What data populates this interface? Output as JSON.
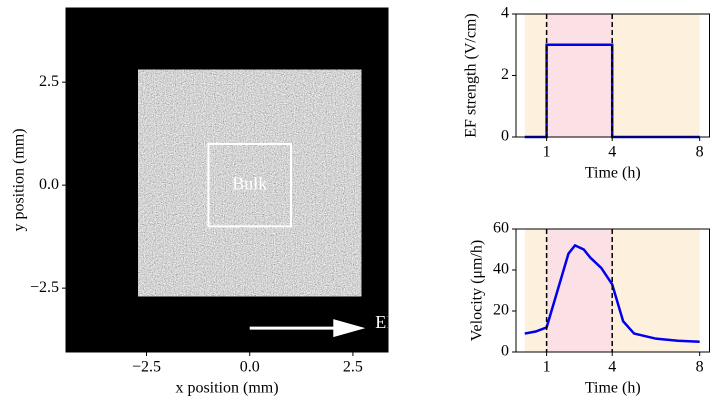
{
  "chart_data": [
    {
      "type": "image",
      "xlabel": "x position (mm)",
      "ylabel": "y position (mm)",
      "xlim": [
        -4.45,
        3.35
      ],
      "ylim": [
        -4.05,
        4.3
      ],
      "xticks": [
        {
          "value": -2.5,
          "label": "−2.5"
        },
        {
          "value": 0,
          "label": "0.0"
        },
        2.5
      ],
      "yticks": [
        {
          "value": -2.5,
          "label": "−2.5"
        },
        {
          "value": 0,
          "label": "0.0"
        },
        2.5
      ],
      "background": "#000000",
      "sample": {
        "x": [
          -2.7,
          2.7
        ],
        "y": [
          -2.7,
          2.8
        ]
      },
      "box": {
        "label": "Bulk",
        "x": [
          -1,
          1
        ],
        "y": [
          -1,
          1
        ],
        "color": "#ffffff"
      },
      "arrow": {
        "label": "EF",
        "x": [
          0,
          2.8
        ],
        "y": -3.47,
        "color": "#ffffff"
      }
    },
    {
      "type": "line",
      "xlabel": "Time (h)",
      "ylabel": "EF strength (V/cm)",
      "xlim": [
        -0.4,
        8.45
      ],
      "ylim": [
        0,
        4
      ],
      "xticks": [
        1,
        4,
        8
      ],
      "yticks": [
        0,
        2,
        4
      ],
      "spans": [
        {
          "x": [
            0,
            8
          ],
          "color": "#fdf0dc"
        },
        {
          "x": [
            1,
            4
          ],
          "color": "#fbe0e6"
        }
      ],
      "vlines": [
        1,
        4
      ],
      "series": [
        {
          "color": "#0000ee",
          "x": [
            0,
            1,
            1,
            4,
            4,
            8
          ],
          "values": [
            0,
            0,
            3,
            3,
            0,
            0
          ]
        }
      ]
    },
    {
      "type": "line",
      "xlabel": "Time (h)",
      "ylabel": "Velocity (μm/h)",
      "xlim": [
        -0.4,
        8.45
      ],
      "ylim": [
        0,
        60
      ],
      "xticks": [
        1,
        4,
        8
      ],
      "yticks": [
        0,
        20,
        40,
        60
      ],
      "spans": [
        {
          "x": [
            0,
            8
          ],
          "color": "#fdf0dc"
        },
        {
          "x": [
            1,
            4
          ],
          "color": "#fbe0e6"
        }
      ],
      "vlines": [
        1,
        4
      ],
      "series": [
        {
          "color": "#0000ee",
          "x": [
            0,
            0.5,
            1,
            1.5,
            2,
            2.3,
            2.7,
            3,
            3.5,
            4,
            4.5,
            5,
            6,
            7,
            8
          ],
          "values": [
            9,
            10,
            12,
            30,
            48,
            52,
            50,
            46,
            41,
            33,
            15,
            9,
            6.5,
            5.5,
            5
          ]
        }
      ]
    }
  ]
}
